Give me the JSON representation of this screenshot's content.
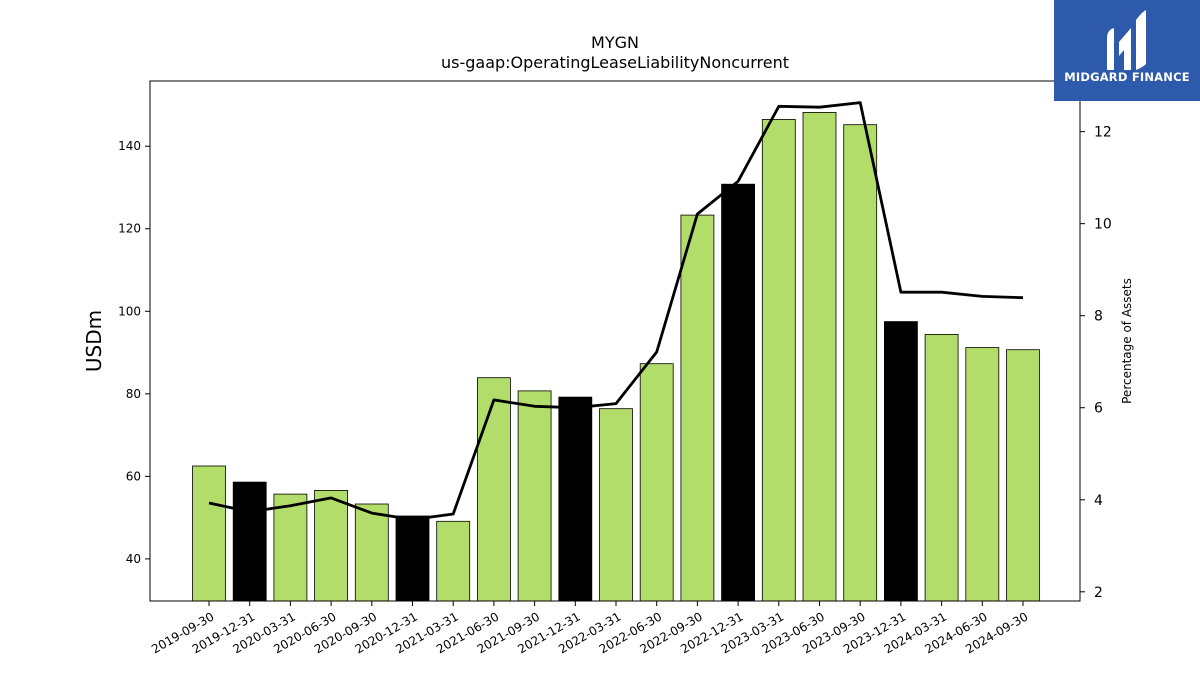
{
  "chart_data": {
    "type": "bar",
    "title": "MYGN",
    "subtitle": "us-gaap:OperatingLeaseLiabilityNoncurrent",
    "ylabel": "USDm",
    "y2label": "Percentage of Assets",
    "categories": [
      "2019-09-30",
      "2019-12-31",
      "2020-03-31",
      "2020-06-30",
      "2020-09-30",
      "2020-12-31",
      "2021-03-31",
      "2021-06-30",
      "2021-09-30",
      "2021-12-31",
      "2022-03-31",
      "2022-06-30",
      "2022-09-30",
      "2022-12-31",
      "2023-03-31",
      "2023-06-30",
      "2023-09-30",
      "2023-12-31",
      "2024-03-31",
      "2024-06-30",
      "2024-09-30"
    ],
    "series": [
      {
        "type": "bar",
        "axis": "left",
        "values": [
          62.5,
          58.6,
          55.7,
          56.6,
          53.3,
          50.4,
          49.1,
          83.9,
          80.7,
          79.2,
          76.4,
          87.3,
          123.3,
          130.8,
          146.5,
          148.2,
          145.2,
          97.5,
          94.4,
          91.2,
          90.7
        ],
        "highlight": [
          false,
          true,
          false,
          false,
          false,
          true,
          false,
          false,
          false,
          true,
          false,
          false,
          false,
          true,
          false,
          false,
          false,
          true,
          false,
          false,
          false
        ]
      },
      {
        "type": "line",
        "axis": "right",
        "values": [
          3.93,
          3.74,
          3.87,
          4.04,
          3.71,
          3.57,
          3.69,
          6.17,
          6.03,
          6.0,
          6.09,
          7.21,
          10.21,
          10.92,
          12.55,
          12.53,
          12.63,
          8.51,
          8.51,
          8.42,
          8.39
        ]
      }
    ],
    "ylim": [
      29.8,
      155.8
    ],
    "y2lim": [
      1.8,
      13.1
    ],
    "yticks": [
      40,
      60,
      80,
      100,
      120,
      140
    ],
    "y2ticks": [
      2,
      4,
      6,
      8,
      10,
      12
    ],
    "colors": {
      "bar": "#b3dd6b",
      "bar_highlight": "#000000",
      "line": "#000000",
      "edge": "#000000"
    },
    "grid": false
  },
  "logo": {
    "text": "MIDGARD FINANCE",
    "background": "#2e5aac"
  }
}
